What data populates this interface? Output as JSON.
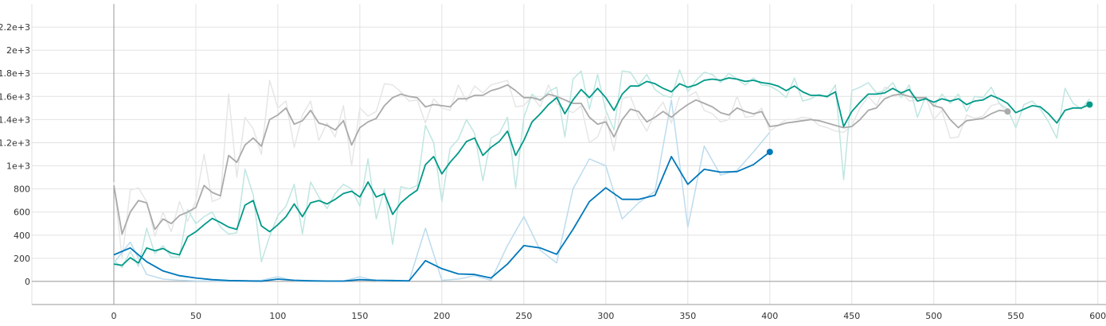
{
  "chart_data": {
    "type": "line",
    "title": "",
    "xlabel": "",
    "ylabel": "",
    "xlim": [
      -50,
      605
    ],
    "ylim": [
      -200,
      2400
    ],
    "x_ticks": [
      0,
      50,
      100,
      150,
      200,
      250,
      300,
      350,
      400,
      450,
      500,
      550,
      600
    ],
    "x_tick_labels": [
      "0",
      "50",
      "100",
      "150",
      "200",
      "250",
      "300",
      "350",
      "400",
      "450",
      "500",
      "550",
      "600"
    ],
    "y_ticks": [
      0,
      200,
      400,
      600,
      800,
      1000,
      1200,
      1400,
      1600,
      1800,
      2000,
      2200
    ],
    "y_tick_labels": [
      "0",
      "200",
      "400",
      "600",
      "800",
      "1e+3",
      "1.2e+3",
      "1.4e+3",
      "1.6e+3",
      "1.8e+3",
      "2e+3",
      "2.2e+3"
    ],
    "grid": true,
    "legend": "none",
    "series": [
      {
        "color": "#aaaaaa",
        "raw_color": "#e6e6e6",
        "x": [
          0,
          5,
          10,
          15,
          20,
          25,
          30,
          35,
          40,
          45,
          50,
          55,
          60,
          65,
          70,
          75,
          80,
          85,
          90,
          95,
          100,
          105,
          110,
          115,
          120,
          125,
          130,
          135,
          140,
          145,
          150,
          155,
          160,
          165,
          170,
          175,
          180,
          185,
          190,
          195,
          200,
          205,
          210,
          215,
          220,
          225,
          230,
          235,
          240,
          245,
          250,
          255,
          260,
          265,
          270,
          275,
          280,
          285,
          290,
          295,
          300,
          305,
          310,
          315,
          320,
          325,
          330,
          335,
          340,
          345,
          350,
          355,
          360,
          365,
          370,
          375,
          380,
          385,
          390,
          395,
          400,
          405,
          410,
          415,
          420,
          425,
          430,
          435,
          440,
          445,
          450,
          455,
          460,
          465,
          470,
          475,
          480,
          485,
          490,
          495,
          500,
          505,
          510,
          515,
          520,
          525,
          530,
          535,
          540,
          545
        ],
        "smoothed": [
          830,
          410,
          600,
          700,
          680,
          450,
          540,
          500,
          570,
          600,
          640,
          830,
          770,
          740,
          1090,
          1030,
          1180,
          1240,
          1170,
          1400,
          1440,
          1500,
          1360,
          1390,
          1480,
          1370,
          1350,
          1310,
          1390,
          1180,
          1330,
          1380,
          1410,
          1520,
          1590,
          1620,
          1600,
          1590,
          1510,
          1530,
          1520,
          1510,
          1580,
          1580,
          1610,
          1610,
          1650,
          1670,
          1700,
          1650,
          1590,
          1590,
          1570,
          1620,
          1600,
          1570,
          1540,
          1540,
          1420,
          1360,
          1380,
          1250,
          1400,
          1490,
          1470,
          1380,
          1420,
          1470,
          1420,
          1480,
          1530,
          1570,
          1540,
          1510,
          1460,
          1440,
          1500,
          1470,
          1450,
          1470,
          1340,
          1350,
          1370,
          1380,
          1390,
          1400,
          1390,
          1370,
          1350,
          1330,
          1340,
          1400,
          1480,
          1500,
          1580,
          1610,
          1620,
          1600,
          1590,
          1590,
          1520,
          1500,
          1400,
          1330,
          1390,
          1400,
          1410,
          1450,
          1480,
          1470,
          1460,
          1410,
          1450
        ],
        "raw": [
          860,
          200,
          790,
          810,
          690,
          390,
          600,
          430,
          690,
          520,
          700,
          1100,
          690,
          720,
          1620,
          900,
          1420,
          1320,
          1100,
          1740,
          1500,
          1560,
          1160,
          1440,
          1560,
          1220,
          1370,
          1250,
          1520,
          1000,
          1500,
          1430,
          1470,
          1710,
          1700,
          1640,
          1560,
          1570,
          1370,
          1580,
          1500,
          1480,
          1700,
          1560,
          1690,
          1630,
          1700,
          1720,
          1740,
          1510,
          1520,
          1600,
          1510,
          1700,
          1540,
          1490,
          1460,
          1520,
          1200,
          1250,
          1430,
          1130,
          1580,
          1600,
          1420,
          1300,
          1460,
          1550,
          1370,
          1600,
          1600,
          1640,
          1480,
          1450,
          1380,
          1400,
          1600,
          1420,
          1430,
          1500,
          1300,
          1350,
          1400,
          1400,
          1420,
          1410,
          1350,
          1330,
          1300,
          1290,
          1350,
          1500,
          1600,
          1520,
          1680,
          1660,
          1640,
          1560,
          1570,
          1600,
          1400,
          1480,
          1240,
          1250,
          1440,
          1410,
          1430,
          1520,
          1540,
          1450,
          1440,
          1320,
          1470
        ]
      },
      {
        "color": "#0077bb",
        "raw_color": "#bcdcee",
        "x": [
          0,
          10,
          20,
          30,
          40,
          50,
          60,
          70,
          80,
          90,
          100,
          110,
          120,
          130,
          140,
          150,
          160,
          170,
          180,
          190,
          200,
          210,
          220,
          230,
          240,
          250,
          260,
          270,
          280,
          290,
          300,
          310,
          320,
          330,
          340,
          350,
          360,
          370,
          380,
          390,
          400
        ],
        "smoothed": [
          230,
          290,
          170,
          90,
          50,
          30,
          15,
          8,
          5,
          2,
          20,
          10,
          5,
          3,
          3,
          15,
          10,
          8,
          5,
          180,
          110,
          65,
          60,
          30,
          150,
          310,
          290,
          235,
          450,
          690,
          810,
          710,
          710,
          745,
          1080,
          840,
          970,
          945,
          950,
          1010,
          1120
        ],
        "raw": [
          160,
          340,
          60,
          20,
          10,
          5,
          5,
          3,
          2,
          10,
          40,
          5,
          2,
          1,
          3,
          40,
          5,
          5,
          2,
          460,
          10,
          20,
          50,
          10,
          310,
          560,
          270,
          160,
          800,
          1060,
          1000,
          540,
          680,
          780,
          1570,
          470,
          1170,
          920,
          960,
          1120,
          1290
        ]
      },
      {
        "color": "#009988",
        "raw_color": "#bfe6e1",
        "x": [
          0,
          5,
          10,
          15,
          20,
          25,
          30,
          35,
          40,
          45,
          50,
          55,
          60,
          65,
          70,
          75,
          80,
          85,
          90,
          95,
          100,
          105,
          110,
          115,
          120,
          125,
          130,
          135,
          140,
          145,
          150,
          155,
          160,
          165,
          170,
          175,
          180,
          185,
          190,
          195,
          200,
          205,
          210,
          215,
          220,
          225,
          230,
          235,
          240,
          245,
          250,
          255,
          260,
          265,
          270,
          275,
          280,
          285,
          290,
          295,
          300,
          305,
          310,
          315,
          320,
          325,
          330,
          335,
          340,
          345,
          350,
          355,
          360,
          365,
          370,
          375,
          380,
          385,
          390,
          395,
          400,
          405,
          410,
          415,
          420,
          425,
          430,
          435,
          440,
          445,
          450,
          455,
          460,
          465,
          470,
          475,
          480,
          485,
          490,
          495,
          500,
          505,
          510,
          515,
          520,
          525,
          530,
          535,
          540,
          545,
          550,
          555,
          560,
          565,
          570,
          575,
          580,
          585,
          590,
          595
        ],
        "smoothed": [
          150,
          140,
          205,
          160,
          290,
          265,
          285,
          245,
          230,
          385,
          430,
          490,
          545,
          510,
          470,
          450,
          660,
          700,
          480,
          430,
          490,
          560,
          670,
          560,
          680,
          700,
          670,
          710,
          760,
          780,
          730,
          860,
          730,
          760,
          580,
          680,
          740,
          790,
          1010,
          1080,
          930,
          1030,
          1110,
          1210,
          1240,
          1090,
          1160,
          1210,
          1300,
          1090,
          1220,
          1380,
          1450,
          1530,
          1590,
          1450,
          1570,
          1660,
          1590,
          1670,
          1590,
          1480,
          1620,
          1690,
          1690,
          1730,
          1710,
          1670,
          1640,
          1710,
          1680,
          1700,
          1740,
          1750,
          1740,
          1760,
          1750,
          1730,
          1740,
          1720,
          1710,
          1690,
          1650,
          1690,
          1640,
          1610,
          1610,
          1600,
          1640,
          1340,
          1470,
          1550,
          1620,
          1620,
          1630,
          1670,
          1630,
          1660,
          1560,
          1580,
          1550,
          1580,
          1560,
          1580,
          1530,
          1560,
          1570,
          1610,
          1580,
          1540,
          1460,
          1490,
          1520,
          1510,
          1450,
          1370,
          1480,
          1500,
          1500,
          1530
        ],
        "raw": [
          180,
          120,
          260,
          130,
          460,
          240,
          310,
          210,
          210,
          620,
          500,
          560,
          600,
          470,
          410,
          420,
          970,
          750,
          170,
          390,
          570,
          650,
          840,
          410,
          860,
          730,
          630,
          760,
          840,
          800,
          650,
          1060,
          540,
          800,
          320,
          820,
          800,
          830,
          1350,
          1200,
          690,
          1150,
          1230,
          1400,
          1280,
          870,
          1240,
          1280,
          1420,
          810,
          1420,
          1620,
          1560,
          1640,
          1680,
          1250,
          1750,
          1820,
          1490,
          1790,
          1480,
          1310,
          1820,
          1810,
          1700,
          1790,
          1660,
          1610,
          1590,
          1830,
          1640,
          1740,
          1810,
          1790,
          1720,
          1800,
          1750,
          1700,
          1760,
          1700,
          1690,
          1650,
          1590,
          1760,
          1560,
          1580,
          1620,
          1590,
          1700,
          880,
          1650,
          1680,
          1720,
          1630,
          1650,
          1720,
          1590,
          1700,
          1420,
          1600,
          1510,
          1620,
          1540,
          1620,
          1470,
          1600,
          1590,
          1680,
          1540,
          1490,
          1330,
          1530,
          1560,
          1490,
          1380,
          1240,
          1670,
          1540,
          1490,
          1580
        ]
      }
    ]
  }
}
